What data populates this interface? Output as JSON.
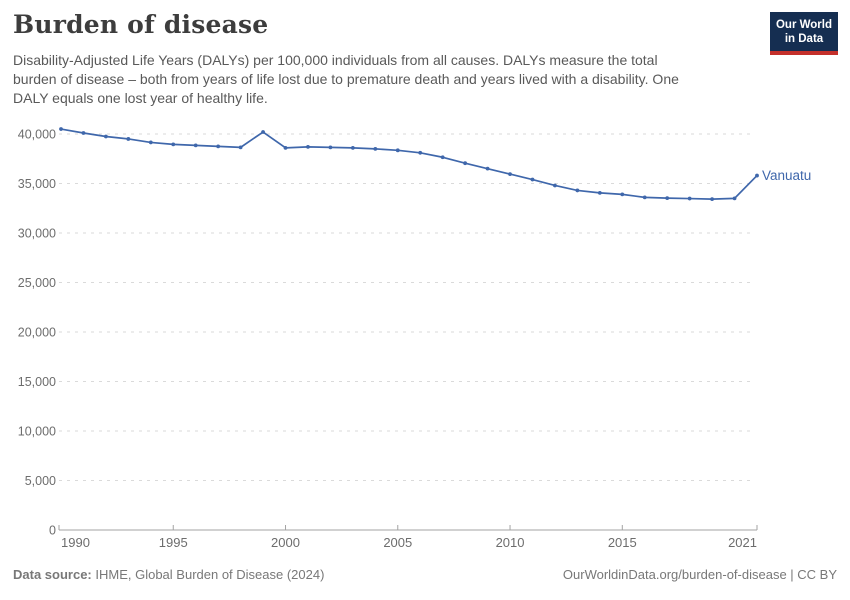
{
  "header": {
    "title": "Burden of disease",
    "subtitle_lines": [
      "Disability-Adjusted Life Years (DALYs) per 100,000 individuals from all causes. DALYs measure the total",
      "burden of disease – both from years of life lost due to premature death and years lived with a disability. One",
      "DALY equals one lost year of healthy life."
    ],
    "logo_line1": "Our World",
    "logo_line2": "in Data"
  },
  "footer": {
    "data_source_label": "Data source:",
    "data_source_value": "IHME, Global Burden of Disease (2024)",
    "attribution": "OurWorldinData.org/burden-of-disease | CC BY"
  },
  "colors": {
    "line": "#3f67ab",
    "grid": "#dadada",
    "axis": "#a3a3a3",
    "tick_label": "#6d6d6d",
    "title_color": "#3d3d3d",
    "subtitle_color": "#595959",
    "footer_color": "#787878",
    "logo_bg": "#152e51",
    "logo_red": "#c4302b"
  },
  "chart_data": {
    "type": "line",
    "title": "Burden of disease",
    "unit": "DALYs per 100,000 individuals",
    "x": [
      1990,
      1991,
      1992,
      1993,
      1994,
      1995,
      1996,
      1997,
      1998,
      1999,
      2000,
      2001,
      2002,
      2003,
      2004,
      2005,
      2006,
      2007,
      2008,
      2009,
      2010,
      2011,
      2012,
      2013,
      2014,
      2015,
      2016,
      2017,
      2018,
      2019,
      2020,
      2021
    ],
    "series": [
      {
        "name": "Vanuatu",
        "values": [
          40500,
          40100,
          39750,
          39500,
          39150,
          38950,
          38850,
          38750,
          38650,
          40200,
          38600,
          38700,
          38650,
          38600,
          38500,
          38350,
          38100,
          37650,
          37050,
          36500,
          35950,
          35400,
          34800,
          34300,
          34050,
          33900,
          33600,
          33520,
          33480,
          33420,
          33500,
          35800
        ]
      }
    ],
    "xlabel": "",
    "ylabel": "",
    "ylim": [
      0,
      40000
    ],
    "yticks": [
      0,
      5000,
      10000,
      15000,
      20000,
      25000,
      30000,
      35000,
      40000
    ],
    "xticks": [
      1990,
      1995,
      2000,
      2005,
      2010,
      2015,
      2021
    ],
    "grid": true,
    "legend_position": "end-of-line-label"
  }
}
